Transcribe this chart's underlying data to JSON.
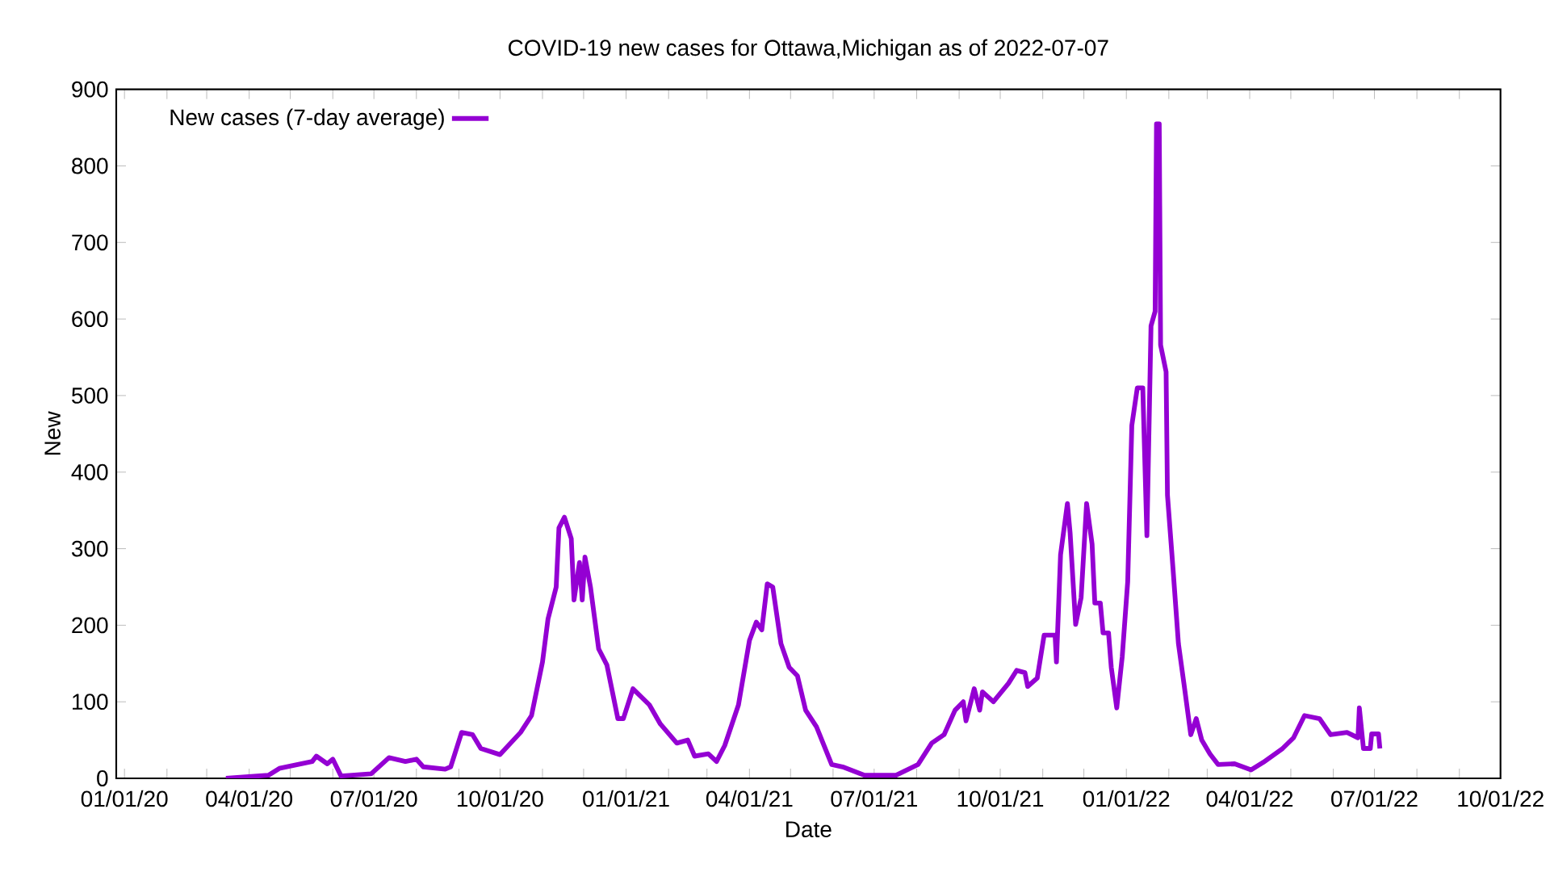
{
  "chart_data": {
    "type": "line",
    "title": "COVID-19 new cases for Ottawa,Michigan as of 2022-07-07",
    "xlabel": "Date",
    "ylabel": "New",
    "xlim": [
      "2019-12-26",
      "2022-10-01"
    ],
    "ylim": [
      0,
      900
    ],
    "xticks": [
      {
        "value": "2020-01-01",
        "label": "01/01/20"
      },
      {
        "value": "2020-02-01",
        "label": null
      },
      {
        "value": "2020-03-01",
        "label": null
      },
      {
        "value": "2020-04-01",
        "label": "04/01/20"
      },
      {
        "value": "2020-05-01",
        "label": null
      },
      {
        "value": "2020-06-01",
        "label": null
      },
      {
        "value": "2020-07-01",
        "label": "07/01/20"
      },
      {
        "value": "2020-08-01",
        "label": null
      },
      {
        "value": "2020-09-01",
        "label": null
      },
      {
        "value": "2020-10-01",
        "label": "10/01/20"
      },
      {
        "value": "2020-11-01",
        "label": null
      },
      {
        "value": "2020-12-01",
        "label": null
      },
      {
        "value": "2021-01-01",
        "label": "01/01/21"
      },
      {
        "value": "2021-02-01",
        "label": null
      },
      {
        "value": "2021-03-01",
        "label": null
      },
      {
        "value": "2021-04-01",
        "label": "04/01/21"
      },
      {
        "value": "2021-05-01",
        "label": null
      },
      {
        "value": "2021-06-01",
        "label": null
      },
      {
        "value": "2021-07-01",
        "label": "07/01/21"
      },
      {
        "value": "2021-08-01",
        "label": null
      },
      {
        "value": "2021-09-01",
        "label": null
      },
      {
        "value": "2021-10-01",
        "label": "10/01/21"
      },
      {
        "value": "2021-11-01",
        "label": null
      },
      {
        "value": "2021-12-01",
        "label": null
      },
      {
        "value": "2022-01-01",
        "label": "01/01/22"
      },
      {
        "value": "2022-02-01",
        "label": null
      },
      {
        "value": "2022-03-01",
        "label": null
      },
      {
        "value": "2022-04-01",
        "label": "04/01/22"
      },
      {
        "value": "2022-05-01",
        "label": null
      },
      {
        "value": "2022-06-01",
        "label": null
      },
      {
        "value": "2022-07-01",
        "label": "07/01/22"
      },
      {
        "value": "2022-08-01",
        "label": null
      },
      {
        "value": "2022-09-01",
        "label": null
      },
      {
        "value": "2022-10-01",
        "label": "10/01/22"
      }
    ],
    "yticks": [
      0,
      100,
      200,
      300,
      400,
      500,
      600,
      700,
      800,
      900
    ],
    "legend": "top left",
    "marker": "none",
    "line_style": "solid",
    "x": [
      "2020-03-15",
      "2020-04-15",
      "2020-04-23",
      "2020-05-17",
      "2020-05-20",
      "2020-05-28",
      "2020-06-01",
      "2020-06-07",
      "2020-06-29",
      "2020-07-12",
      "2020-07-24",
      "2020-08-01",
      "2020-08-06",
      "2020-08-22",
      "2020-08-26",
      "2020-09-03",
      "2020-09-11",
      "2020-09-17",
      "2020-10-01",
      "2020-10-16",
      "2020-10-24",
      "2020-11-01",
      "2020-11-05",
      "2020-11-11",
      "2020-11-13",
      "2020-11-17",
      "2020-11-22",
      "2020-11-24",
      "2020-11-28",
      "2020-11-30",
      "2020-12-02",
      "2020-12-06",
      "2020-12-12",
      "2020-12-18",
      "2020-12-26",
      "2020-12-30",
      "2021-01-06",
      "2021-01-18",
      "2021-01-26",
      "2021-02-07",
      "2021-02-15",
      "2021-02-20",
      "2021-03-02",
      "2021-03-08",
      "2021-03-14",
      "2021-03-24",
      "2021-04-01",
      "2021-04-06",
      "2021-04-10",
      "2021-04-14",
      "2021-04-18",
      "2021-04-24",
      "2021-04-30",
      "2021-05-06",
      "2021-05-12",
      "2021-05-20",
      "2021-05-31",
      "2021-06-08",
      "2021-06-24",
      "2021-07-17",
      "2021-08-02",
      "2021-08-12",
      "2021-08-21",
      "2021-08-29",
      "2021-09-04",
      "2021-09-06",
      "2021-09-12",
      "2021-09-16",
      "2021-09-18",
      "2021-09-26",
      "2021-10-07",
      "2021-10-13",
      "2021-10-19",
      "2021-10-21",
      "2021-10-28",
      "2021-11-02",
      "2021-11-10",
      "2021-11-11",
      "2021-11-14",
      "2021-11-19",
      "2021-11-21",
      "2021-11-25",
      "2021-11-29",
      "2021-12-03",
      "2021-12-07",
      "2021-12-09",
      "2021-12-13",
      "2021-12-15",
      "2021-12-19",
      "2021-12-21",
      "2021-12-25",
      "2021-12-29",
      "2022-01-02",
      "2022-01-05",
      "2022-01-09",
      "2022-01-13",
      "2022-01-16",
      "2022-01-19",
      "2022-01-22",
      "2022-01-23",
      "2022-01-25",
      "2022-01-26",
      "2022-01-30",
      "2022-01-31",
      "2022-02-04",
      "2022-02-08",
      "2022-02-12",
      "2022-02-17",
      "2022-02-21",
      "2022-02-25",
      "2022-03-03",
      "2022-03-09",
      "2022-03-21",
      "2022-04-02",
      "2022-04-11",
      "2022-04-25",
      "2022-05-03",
      "2022-05-11",
      "2022-05-22",
      "2022-05-30",
      "2022-06-11",
      "2022-06-19",
      "2022-06-20",
      "2022-06-23",
      "2022-06-28",
      "2022-06-29",
      "2022-07-04",
      "2022-07-05"
    ],
    "series": [
      {
        "name": "New cases (7-day average)",
        "color": "#9400d3",
        "values": [
          0,
          4,
          13,
          22,
          29,
          19,
          25,
          3,
          6,
          27,
          22,
          25,
          15,
          12,
          15,
          60,
          57,
          39,
          31,
          60,
          82,
          152,
          208,
          250,
          327,
          341,
          313,
          233,
          282,
          233,
          289,
          250,
          169,
          148,
          78,
          78,
          117,
          96,
          71,
          46,
          50,
          29,
          32,
          22,
          43,
          96,
          180,
          204,
          194,
          254,
          250,
          176,
          145,
          134,
          89,
          67,
          18,
          15,
          4,
          4,
          18,
          46,
          57,
          89,
          100,
          75,
          117,
          89,
          113,
          100,
          124,
          141,
          138,
          120,
          131,
          187,
          187,
          152,
          292,
          359,
          320,
          201,
          236,
          359,
          306,
          229,
          229,
          190,
          190,
          145,
          92,
          159,
          257,
          461,
          510,
          510,
          317,
          591,
          610,
          855,
          855,
          566,
          531,
          370,
          275,
          176,
          124,
          57,
          78,
          50,
          32,
          18,
          19,
          11,
          21,
          39,
          53,
          82,
          78,
          57,
          60,
          53,
          92,
          39,
          39,
          58,
          58,
          39
        ]
      }
    ]
  }
}
